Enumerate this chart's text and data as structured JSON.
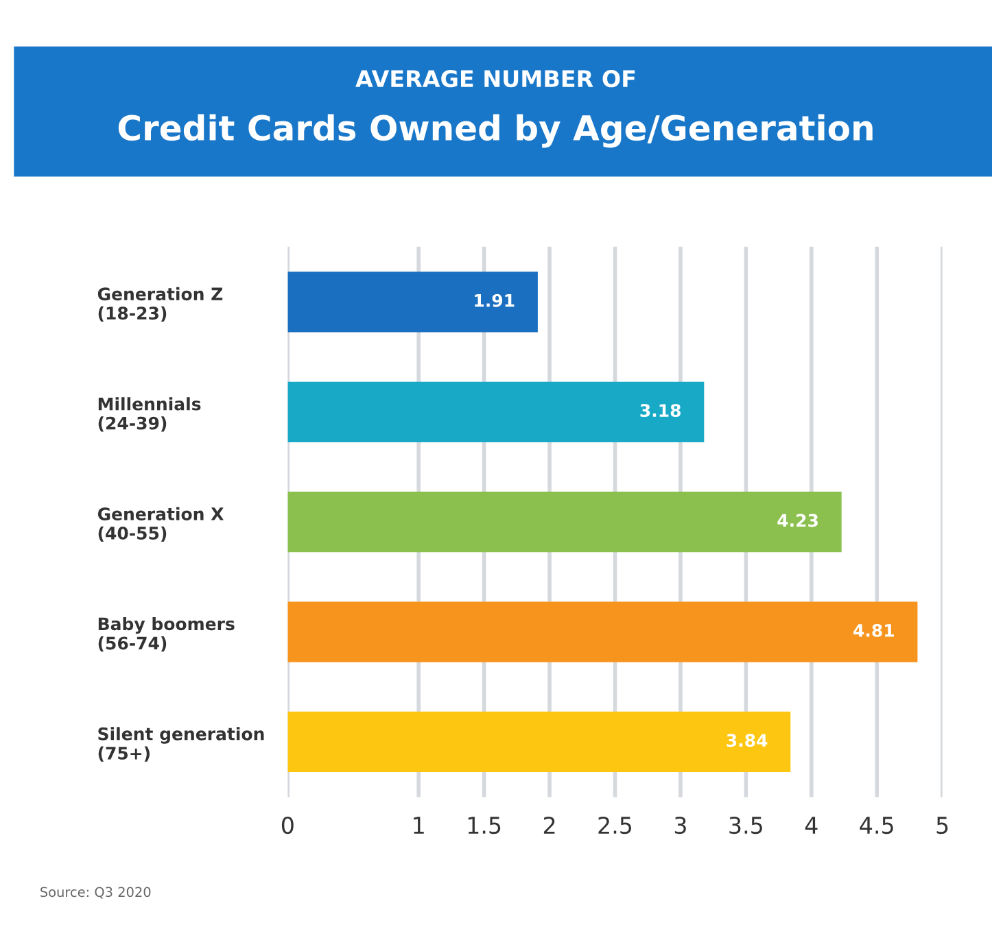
{
  "chart_data": {
    "type": "bar",
    "orientation": "horizontal",
    "title": "AVERAGE NUMBER OF",
    "subtitle": "Credit Cards Owned by Age/Generation",
    "categories": [
      "Generation Z\n(18-23)",
      "Millennials\n(24-39)",
      "Generation X\n(40-55)",
      "Baby boomers\n(56-74)",
      "Silent generation\n(75+)"
    ],
    "values": [
      1.91,
      3.18,
      4.23,
      4.81,
      3.84
    ],
    "colors": [
      "#1a6fc0",
      "#17a9c6",
      "#8bc04f",
      "#f7941d",
      "#fcc611"
    ],
    "xlim": [
      0,
      5
    ],
    "xticks": [
      0,
      1,
      1.5,
      2,
      2.5,
      3,
      3.5,
      4,
      4.5,
      5
    ],
    "grid": "x",
    "data_labels": true,
    "annotations": [
      "Source: Q3 2020"
    ]
  }
}
